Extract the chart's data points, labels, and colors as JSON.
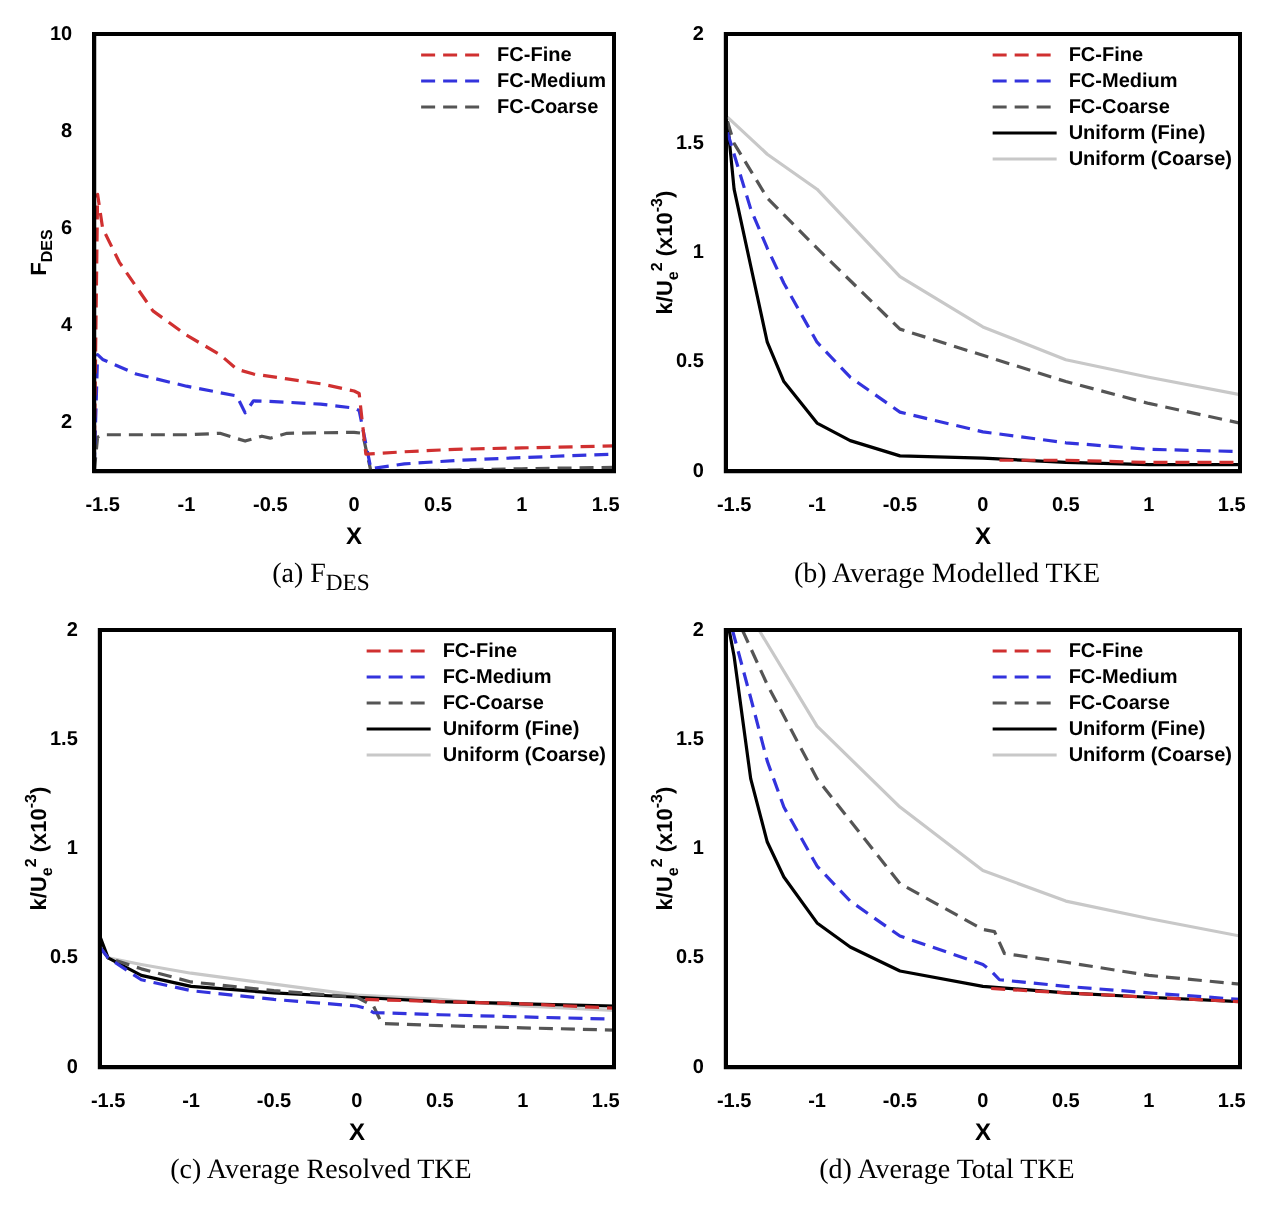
{
  "chart_data": [
    {
      "type": "line",
      "title": "(a) F$_{DES}$",
      "xlabel": "X",
      "ylabel": "F$_{DES}$",
      "xlim": [
        -1.55,
        1.55
      ],
      "xticks": [
        -1.5,
        -1,
        -0.5,
        0,
        0.5,
        1,
        1.5
      ],
      "ylim": [
        1,
        10
      ],
      "yticks": [
        2,
        4,
        6,
        8,
        10
      ],
      "legend": "top right",
      "series": [
        {
          "name": "FC-Fine",
          "color": "#d03030",
          "line_style": "dashed",
          "x": [
            -1.55,
            -1.53,
            -1.5,
            -1.4,
            -1.3,
            -1.2,
            -1.0,
            -0.8,
            -0.7,
            -0.6,
            -0.4,
            -0.2,
            0.0,
            0.03,
            0.07,
            0.3,
            0.6,
            1.0,
            1.3,
            1.55
          ],
          "values": [
            1.2,
            6.7,
            6.0,
            5.3,
            4.8,
            4.3,
            3.8,
            3.4,
            3.1,
            3.0,
            2.9,
            2.8,
            2.65,
            2.6,
            1.35,
            1.4,
            1.45,
            1.48,
            1.5,
            1.52
          ]
        },
        {
          "name": "FC-Medium",
          "color": "#3333dd",
          "line_style": "dashed",
          "x": [
            -1.55,
            -1.53,
            -1.5,
            -1.3,
            -1.0,
            -0.7,
            -0.65,
            -0.6,
            -0.4,
            -0.2,
            0.0,
            0.03,
            0.1,
            0.3,
            0.6,
            1.0,
            1.3,
            1.55
          ],
          "values": [
            1.1,
            3.4,
            3.3,
            3.0,
            2.75,
            2.55,
            2.2,
            2.45,
            2.42,
            2.38,
            2.3,
            2.25,
            1.05,
            1.15,
            1.22,
            1.28,
            1.32,
            1.35
          ]
        },
        {
          "name": "FC-Coarse",
          "color": "#555555",
          "line_style": "dashed",
          "x": [
            -1.55,
            -1.53,
            -1.5,
            -1.0,
            -0.8,
            -0.65,
            -0.55,
            -0.5,
            -0.4,
            0.0,
            0.05,
            0.1,
            0.5,
            1.0,
            1.55
          ],
          "values": [
            1.0,
            1.7,
            1.75,
            1.75,
            1.78,
            1.62,
            1.72,
            1.68,
            1.78,
            1.8,
            1.78,
            1.0,
            1.02,
            1.05,
            1.08
          ]
        }
      ]
    },
    {
      "type": "line",
      "title": "(b) Average Modelled TKE",
      "xlabel": "X",
      "ylabel": "k/U$_{e}$$^{2}$ (x10$^{-3}$)",
      "xlim": [
        -1.55,
        1.55
      ],
      "xticks": [
        -1.5,
        -1,
        -0.5,
        0,
        0.5,
        1,
        1.5
      ],
      "ylim": [
        0,
        2
      ],
      "yticks": [
        0,
        0.5,
        1,
        1.5,
        2
      ],
      "legend": "top right",
      "series": [
        {
          "name": "FC-Fine",
          "color": "#d03030",
          "line_style": "dashed",
          "x": [
            0.1,
            0.5,
            1.0,
            1.55
          ],
          "values": [
            0.05,
            0.05,
            0.04,
            0.04
          ]
        },
        {
          "name": "FC-Medium",
          "color": "#3333dd",
          "line_style": "dashed",
          "x": [
            -1.54,
            -1.5,
            -1.4,
            -1.3,
            -1.2,
            -1.0,
            -0.8,
            -0.5,
            0.0,
            0.5,
            1.0,
            1.55
          ],
          "values": [
            1.55,
            1.45,
            1.2,
            1.02,
            0.86,
            0.59,
            0.43,
            0.27,
            0.18,
            0.13,
            0.1,
            0.09
          ]
        },
        {
          "name": "FC-Coarse",
          "color": "#555555",
          "line_style": "dashed",
          "x": [
            -1.54,
            -1.5,
            -1.3,
            -1.0,
            -0.5,
            0.0,
            0.5,
            1.0,
            1.55
          ],
          "values": [
            1.6,
            1.5,
            1.25,
            1.02,
            0.65,
            0.53,
            0.41,
            0.31,
            0.22
          ]
        },
        {
          "name": "Uniform (Fine)",
          "color": "#000000",
          "line_style": "solid",
          "x": [
            -1.54,
            -1.5,
            -1.4,
            -1.3,
            -1.2,
            -1.0,
            -0.8,
            -0.5,
            0.0,
            0.5,
            1.0,
            1.55
          ],
          "values": [
            1.6,
            1.29,
            0.94,
            0.59,
            0.41,
            0.22,
            0.14,
            0.07,
            0.06,
            0.04,
            0.03,
            0.03
          ]
        },
        {
          "name": "Uniform (Coarse)",
          "color": "#c8c8c8",
          "line_style": "solid",
          "x": [
            -1.54,
            -1.3,
            -1.0,
            -0.5,
            0.0,
            0.5,
            1.0,
            1.55
          ],
          "values": [
            1.62,
            1.45,
            1.29,
            0.89,
            0.66,
            0.51,
            0.43,
            0.35
          ]
        }
      ]
    },
    {
      "type": "line",
      "title": "(c) Average Resolved TKE",
      "xlabel": "X",
      "ylabel": "k/U$_{e}$$^{2}$ (x10$^{-3}$)",
      "xlim": [
        -1.55,
        1.55
      ],
      "xticks": [
        -1.5,
        -1,
        -0.5,
        0,
        0.5,
        1,
        1.5
      ],
      "ylim": [
        0,
        2
      ],
      "yticks": [
        0,
        0.5,
        1,
        1.5,
        2
      ],
      "legend": "top right",
      "series": [
        {
          "name": "FC-Fine",
          "color": "#d03030",
          "line_style": "dashed",
          "x": [
            0.05,
            0.5,
            1.0,
            1.55
          ],
          "values": [
            0.31,
            0.3,
            0.29,
            0.27
          ]
        },
        {
          "name": "FC-Medium",
          "color": "#3333dd",
          "line_style": "dashed",
          "x": [
            -1.55,
            -1.5,
            -1.3,
            -1.0,
            -0.5,
            0.0,
            0.05,
            0.1,
            0.5,
            1.0,
            1.55
          ],
          "values": [
            0.55,
            0.5,
            0.4,
            0.35,
            0.31,
            0.28,
            0.27,
            0.25,
            0.24,
            0.23,
            0.22
          ]
        },
        {
          "name": "FC-Coarse",
          "color": "#555555",
          "line_style": "dashed",
          "x": [
            -1.55,
            -1.5,
            -1.3,
            -1.0,
            -0.5,
            0.0,
            0.1,
            0.15,
            0.5,
            1.0,
            1.55
          ],
          "values": [
            0.55,
            0.5,
            0.45,
            0.39,
            0.35,
            0.32,
            0.28,
            0.2,
            0.19,
            0.18,
            0.17
          ]
        },
        {
          "name": "Uniform (Fine)",
          "color": "#000000",
          "line_style": "solid",
          "x": [
            -1.55,
            -1.5,
            -1.3,
            -1.0,
            -0.5,
            0.0,
            0.5,
            1.0,
            1.55
          ],
          "values": [
            0.6,
            0.5,
            0.42,
            0.37,
            0.34,
            0.32,
            0.3,
            0.29,
            0.28
          ]
        },
        {
          "name": "Uniform (Coarse)",
          "color": "#c8c8c8",
          "line_style": "solid",
          "x": [
            -1.55,
            -1.5,
            -1.3,
            -1.0,
            -0.5,
            0.0,
            0.5,
            1.0,
            1.55
          ],
          "values": [
            0.55,
            0.5,
            0.47,
            0.43,
            0.38,
            0.33,
            0.31,
            0.28,
            0.26
          ]
        }
      ]
    },
    {
      "type": "line",
      "title": "(d) Average Total TKE",
      "xlabel": "X",
      "ylabel": "k/U$_{e}$$^{2}$ (x10$^{-3}$)",
      "xlim": [
        -1.55,
        1.55
      ],
      "xticks": [
        -1.5,
        -1,
        -0.5,
        0,
        0.5,
        1,
        1.5
      ],
      "ylim": [
        0,
        2
      ],
      "yticks": [
        0,
        0.5,
        1,
        1.5,
        2
      ],
      "legend": "top right",
      "series": [
        {
          "name": "FC-Fine",
          "color": "#d03030",
          "line_style": "dashed",
          "x": [
            0.05,
            0.5,
            1.0,
            1.55
          ],
          "values": [
            0.36,
            0.34,
            0.32,
            0.3
          ]
        },
        {
          "name": "FC-Medium",
          "color": "#3333dd",
          "line_style": "dashed",
          "x": [
            -1.51,
            -1.4,
            -1.3,
            -1.2,
            -1.0,
            -0.8,
            -0.5,
            0.0,
            0.05,
            0.1,
            0.5,
            1.0,
            1.55
          ],
          "values": [
            2.0,
            1.69,
            1.4,
            1.19,
            0.92,
            0.76,
            0.6,
            0.47,
            0.44,
            0.4,
            0.37,
            0.34,
            0.31
          ]
        },
        {
          "name": "FC-Coarse",
          "color": "#555555",
          "line_style": "dashed",
          "x": [
            -1.45,
            -1.3,
            -1.0,
            -0.5,
            0.0,
            0.07,
            0.13,
            0.5,
            1.0,
            1.55
          ],
          "values": [
            2.0,
            1.75,
            1.32,
            0.84,
            0.63,
            0.62,
            0.52,
            0.48,
            0.42,
            0.38
          ]
        },
        {
          "name": "Uniform (Fine)",
          "color": "#000000",
          "line_style": "solid",
          "x": [
            -1.53,
            -1.5,
            -1.4,
            -1.3,
            -1.2,
            -1.0,
            -0.8,
            -0.5,
            0.0,
            0.5,
            1.0,
            1.55
          ],
          "values": [
            2.0,
            1.88,
            1.32,
            1.03,
            0.87,
            0.66,
            0.55,
            0.44,
            0.37,
            0.34,
            0.32,
            0.3
          ]
        },
        {
          "name": "Uniform (Coarse)",
          "color": "#c8c8c8",
          "line_style": "solid",
          "x": [
            -1.35,
            -1.0,
            -0.5,
            0.0,
            0.5,
            1.0,
            1.55
          ],
          "values": [
            2.0,
            1.56,
            1.19,
            0.9,
            0.76,
            0.68,
            0.6
          ]
        }
      ]
    }
  ]
}
